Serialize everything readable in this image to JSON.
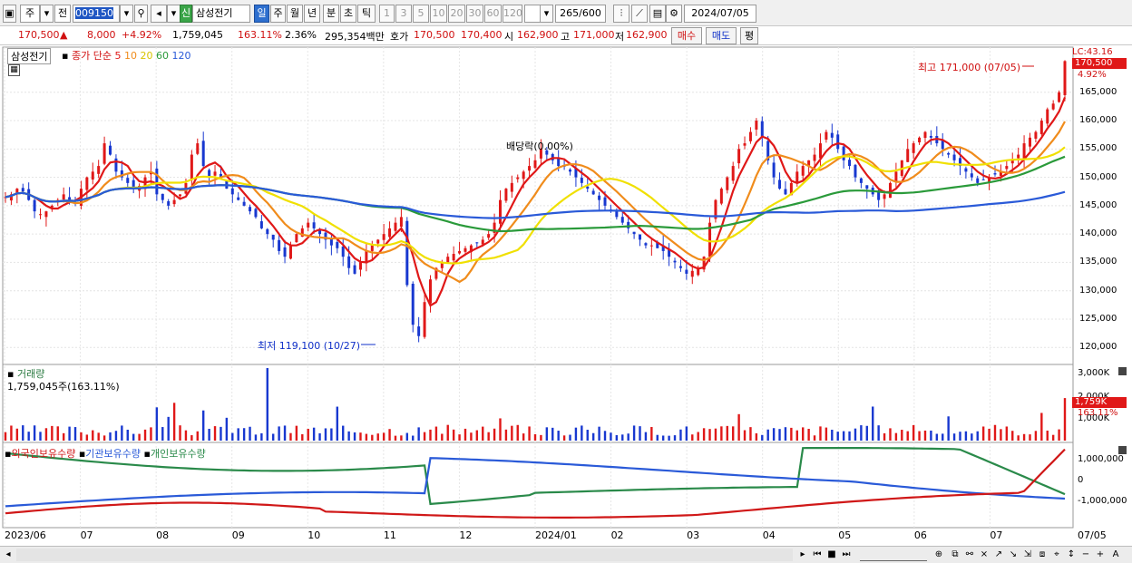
{
  "toolbar": {
    "market": "주",
    "prev": "전",
    "code": "009150",
    "stock_badge": "신",
    "stock_name": "삼성전기",
    "periods": [
      "일",
      "주",
      "월",
      "년",
      "분",
      "초",
      "틱"
    ],
    "period_selected": "일",
    "intervals": [
      "1",
      "3",
      "5",
      "10",
      "20",
      "30",
      "60",
      "120"
    ],
    "count": "265",
    "total": "/600",
    "date": "2024/07/05"
  },
  "quote": {
    "price": "170,500",
    "arrow": "▲",
    "change": "8,000",
    "change_pct": "+4.92%",
    "volume": "1,759,045",
    "vol_ratio": "163.11%",
    "turnover": "2.36%",
    "amount": "295,354백만",
    "ask_label": "호가",
    "ask": "170,500",
    "bid": "170,400",
    "open_label": "시",
    "open": "162,900",
    "high_label": "고",
    "high": "171,000",
    "low_label": "저",
    "low": "162,900",
    "buy_button": "매수",
    "sell_button": "매도",
    "eval_button": "평"
  },
  "price_panel": {
    "stock_tag": "삼성전기",
    "legend_label": "종가 단순",
    "ma_periods": [
      "5",
      "10",
      "20",
      "60",
      "120"
    ],
    "ma_colors": [
      "#e01818",
      "#f08c1c",
      "#f0e000",
      "#2a9a3a",
      "#2a5ad8"
    ],
    "lc_label": "LC:43.16",
    "last_price_tag": "170,500",
    "last_pct_tag": "4.92%",
    "high_annot": "최고 171,000 (07/05)",
    "low_annot": "최저 119,100 (10/27)",
    "dividend_annot": "배당락(0.00%)",
    "y_ticks": [
      "165,000",
      "160,000",
      "155,000",
      "150,000",
      "145,000",
      "140,000",
      "135,000",
      "130,000",
      "125,000",
      "120,000"
    ]
  },
  "volume_panel": {
    "title": "거래량",
    "current": "1,759,045주(163.11%)",
    "y_top": "3,000K",
    "y_mid": "2,000K",
    "y_low": "1,000K",
    "tag_value": "1,759K",
    "tag_pct": "163.11%"
  },
  "holding_panel": {
    "series_names": [
      "외국인보유수량",
      "기관보유수량",
      "개인보유수량"
    ],
    "series_colors": [
      "#d01818",
      "#2a5ad8",
      "#2a8a4a"
    ],
    "y_ticks": [
      "1,000,000",
      "0",
      "-1,000,000"
    ]
  },
  "x_axis": {
    "labels": [
      "2023/06",
      "07",
      "08",
      "09",
      "10",
      "11",
      "12",
      "2024/01",
      "02",
      "03",
      "04",
      "05",
      "06",
      "07",
      "07/05"
    ]
  },
  "chart_data": {
    "type": "candlestick",
    "series": [
      {
        "name": "5",
        "values": []
      },
      {
        "name": "10",
        "values": []
      },
      {
        "name": "20",
        "values": []
      },
      {
        "name": "60",
        "values": []
      },
      {
        "name": "120",
        "values": []
      }
    ],
    "close_path": [
      146.5,
      147,
      148,
      147.5,
      146,
      144,
      143.5,
      144,
      145,
      146,
      147,
      146,
      145.5,
      148,
      150,
      151,
      152,
      156,
      154,
      151,
      150,
      149,
      148,
      148.5,
      150,
      151,
      147,
      146,
      145,
      146,
      147,
      149,
      154,
      156,
      152,
      150,
      151,
      150,
      148,
      147,
      146,
      145,
      144,
      143,
      141,
      140,
      139,
      137,
      136,
      138,
      140,
      141,
      142,
      141,
      140,
      139,
      138,
      137.5,
      136,
      134,
      133,
      135,
      137,
      138,
      139,
      140,
      141,
      142,
      143,
      131,
      124,
      122,
      128,
      132,
      134,
      135,
      136,
      136.5,
      137,
      137.5,
      138,
      138.5,
      139,
      140,
      142,
      146,
      148,
      149,
      150,
      151,
      152,
      153,
      155,
      154,
      153,
      152,
      152,
      151,
      150,
      149,
      148,
      147,
      146,
      145,
      144,
      143,
      142,
      141,
      140,
      139,
      138,
      138,
      137.5,
      137,
      136,
      135,
      134,
      133,
      133.5,
      134,
      136,
      142,
      146,
      148,
      150,
      152,
      155,
      156,
      158,
      160,
      157,
      153,
      150,
      148,
      147,
      149,
      151,
      152,
      153,
      154,
      156,
      158,
      157,
      155,
      153,
      152,
      150,
      149,
      148,
      147,
      146,
      147,
      149,
      151,
      153,
      155,
      156,
      157,
      158,
      157,
      156,
      155,
      154,
      153,
      152,
      151,
      150,
      149,
      149.5,
      150,
      150.5,
      151,
      152,
      153,
      154,
      156,
      157,
      158,
      160,
      162,
      163,
      165,
      170.5
    ],
    "low_annotation": "최저 119,100 (10/27)",
    "high_annotation": "최고 171,000 (07/05)",
    "ylim": [
      117000,
      172000
    ],
    "volume_ylim": [
      0,
      3000
    ]
  }
}
